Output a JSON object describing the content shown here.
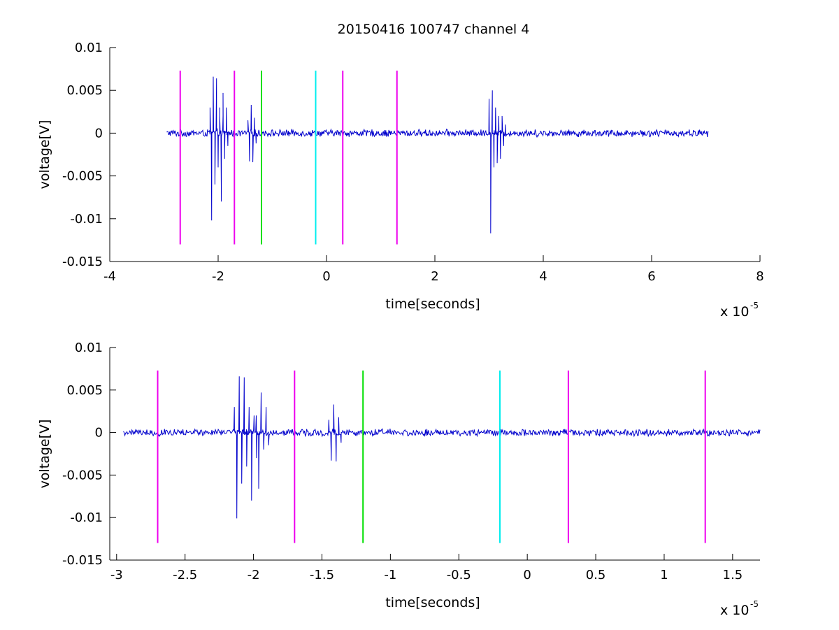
{
  "figure": {
    "title": "20150416 100747 channel 4"
  },
  "colors": {
    "signal": "#0000cc",
    "magenta": "#ee00ee",
    "green": "#00e000",
    "cyan": "#00eeee",
    "axis": "#000000"
  },
  "chart_data": [
    {
      "type": "line",
      "title": "20150416 100747 channel 4",
      "xlabel": "time[seconds]",
      "ylabel": "voltage[V]",
      "x_scale_label": "x 10",
      "x_scale_exponent": "-5",
      "xlim": [
        -4,
        8
      ],
      "ylim": [
        -0.015,
        0.01
      ],
      "x_ticks": [
        -4,
        -2,
        0,
        2,
        4,
        6,
        8
      ],
      "x_tick_labels": [
        "-4",
        "-2",
        "0",
        "2",
        "4",
        "6",
        "8"
      ],
      "y_ticks": [
        -0.015,
        -0.01,
        -0.005,
        0,
        0.005,
        0.01
      ],
      "y_tick_labels": [
        "-0.015",
        "-0.01",
        "-0.005",
        "0",
        "0.005",
        "0.01"
      ],
      "grid": false,
      "series": [
        {
          "x_range": [
            -2.95,
            7.05
          ],
          "noise_amplitude": 0.0004,
          "bursts": [
            {
              "x": -2.15,
              "values": [
                0.003,
                -0.0102,
                0.0066,
                -0.006,
                0.0064,
                -0.004,
                0.003,
                -0.008,
                0.002,
                -0.003
              ]
            },
            {
              "x": -1.97,
              "values": [
                0.002,
                -0.0066,
                0.0047,
                -0.002,
                0.003,
                -0.0015
              ]
            },
            {
              "x": -1.45,
              "values": [
                0.0015,
                -0.0033,
                0.0033,
                -0.0034,
                0.0018,
                -0.0012
              ]
            },
            {
              "x": 3.0,
              "values": [
                0.004,
                -0.0117,
                0.005,
                -0.004,
                0.003,
                -0.0035,
                0.002,
                -0.003,
                0.002,
                -0.0015,
                0.001
              ]
            }
          ]
        }
      ],
      "markers": [
        {
          "x": -2.7,
          "color": "magenta",
          "y_range": [
            -0.013,
            0.0073
          ]
        },
        {
          "x": -1.7,
          "color": "magenta",
          "y_range": [
            -0.013,
            0.0073
          ]
        },
        {
          "x": -1.2,
          "color": "green",
          "y_range": [
            -0.013,
            0.0073
          ]
        },
        {
          "x": -0.2,
          "color": "cyan",
          "y_range": [
            -0.013,
            0.0073
          ]
        },
        {
          "x": 0.3,
          "color": "magenta",
          "y_range": [
            -0.013,
            0.0073
          ]
        },
        {
          "x": 1.3,
          "color": "magenta",
          "y_range": [
            -0.013,
            0.0073
          ]
        }
      ]
    },
    {
      "type": "line",
      "xlabel": "time[seconds]",
      "ylabel": "voltage[V]",
      "x_scale_label": "x 10",
      "x_scale_exponent": "-5",
      "xlim": [
        -3.05,
        1.7
      ],
      "ylim": [
        -0.015,
        0.01
      ],
      "x_ticks": [
        -3,
        -2.5,
        -2,
        -1.5,
        -1,
        -0.5,
        0,
        0.5,
        1,
        1.5
      ],
      "x_tick_labels": [
        "-3",
        "-2.5",
        "-2",
        "-1.5",
        "-1",
        "-0.5",
        "0",
        "0.5",
        "1",
        "1.5"
      ],
      "y_ticks": [
        -0.015,
        -0.01,
        -0.005,
        0,
        0.005,
        0.01
      ],
      "y_tick_labels": [
        "-0.015",
        "-0.01",
        "-0.005",
        "0",
        "0.005",
        "0.01"
      ],
      "grid": false,
      "series": [
        {
          "x_range": [
            -2.95,
            1.7
          ],
          "noise_amplitude": 0.0004,
          "bursts": [
            {
              "x": -2.14,
              "values": [
                0.003,
                -0.0101,
                0.0066,
                -0.006,
                0.0065,
                -0.004,
                0.003,
                -0.008,
                0.002,
                -0.003
              ]
            },
            {
              "x": -1.98,
              "values": [
                0.002,
                -0.0066,
                0.0047,
                -0.002,
                0.003,
                -0.0015
              ]
            },
            {
              "x": -1.45,
              "values": [
                0.0015,
                -0.0033,
                0.0033,
                -0.0034,
                0.0018,
                -0.0012
              ]
            }
          ]
        }
      ],
      "markers": [
        {
          "x": -2.7,
          "color": "magenta",
          "y_range": [
            -0.013,
            0.0073
          ]
        },
        {
          "x": -1.7,
          "color": "magenta",
          "y_range": [
            -0.013,
            0.0073
          ]
        },
        {
          "x": -1.2,
          "color": "green",
          "y_range": [
            -0.013,
            0.0073
          ]
        },
        {
          "x": -0.2,
          "color": "cyan",
          "y_range": [
            -0.013,
            0.0073
          ]
        },
        {
          "x": 0.3,
          "color": "magenta",
          "y_range": [
            -0.013,
            0.0073
          ]
        },
        {
          "x": 1.3,
          "color": "magenta",
          "y_range": [
            -0.013,
            0.0073
          ]
        }
      ]
    }
  ]
}
